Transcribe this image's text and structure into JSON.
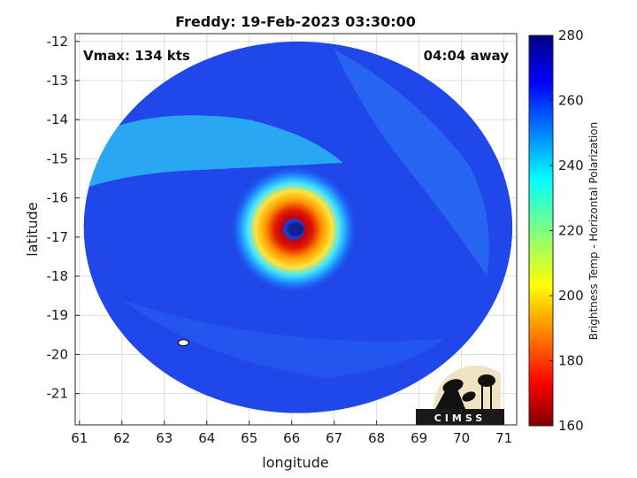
{
  "chart_data": {
    "type": "heatmap",
    "title": "Freddy: 19-Feb-2023 03:30:00",
    "xlabel": "longitude",
    "ylabel": "latitude",
    "xlim": [
      60.9,
      71.3
    ],
    "ylim": [
      -21.8,
      -11.8
    ],
    "xticks": [
      61,
      62,
      63,
      64,
      65,
      66,
      67,
      68,
      69,
      70,
      71
    ],
    "yticks": [
      -12,
      -13,
      -14,
      -15,
      -16,
      -17,
      -18,
      -19,
      -20,
      -21
    ],
    "grid": true,
    "annotations": {
      "vmax": "Vmax: 134 kts",
      "offset": "04:04 away"
    },
    "colorbar": {
      "label": "Brightness Temp - Horizontal Polarization",
      "range": [
        160,
        280
      ],
      "ticks": [
        160,
        180,
        200,
        220,
        240,
        260,
        280
      ],
      "colormap": "jet",
      "position": "right"
    },
    "storm_center": {
      "lon": 66.05,
      "lat": -16.8
    },
    "swath": {
      "center_lon": 66.15,
      "center_lat": -16.75,
      "lon_radius": 5.05,
      "lat_radius": 4.75
    },
    "eye_temp": 270,
    "eyewall_min_temp": 165,
    "background_temp": 262,
    "logo_text": "CIMSS"
  }
}
